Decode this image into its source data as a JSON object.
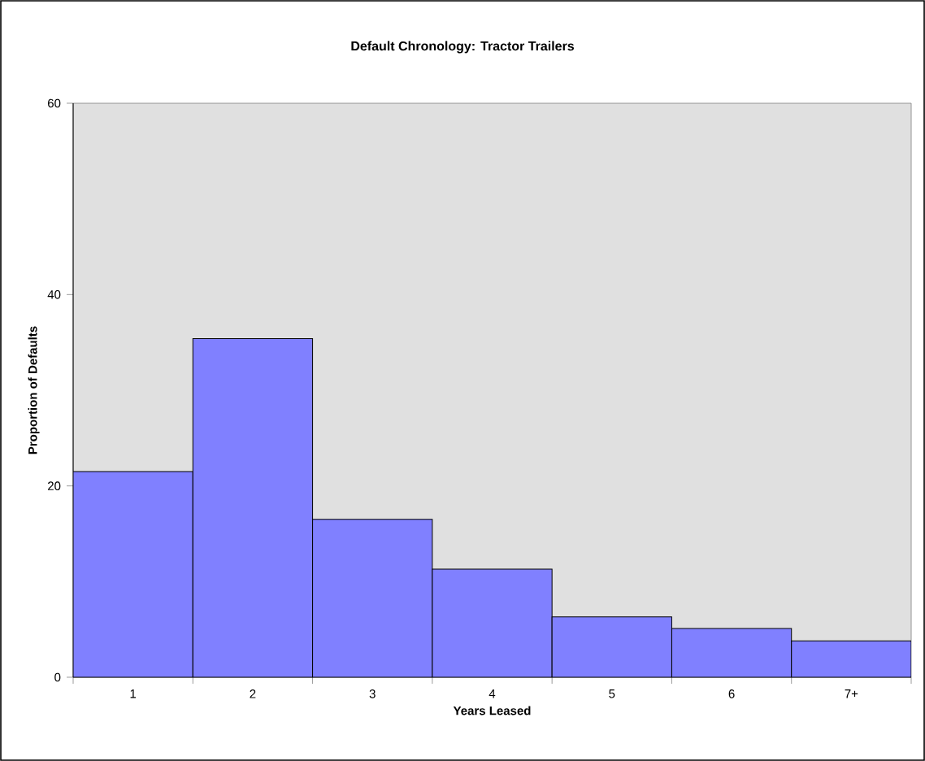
{
  "chart_data": {
    "type": "bar",
    "title": "Default Chronology:  Tractor Trailers",
    "xlabel": "Years Leased",
    "ylabel": "Proportion of Defaults",
    "categories": [
      "1",
      "2",
      "3",
      "4",
      "5",
      "6",
      "7+"
    ],
    "values": [
      21.5,
      35.4,
      16.5,
      11.3,
      6.3,
      5.1,
      3.8
    ],
    "color": "#8080ff",
    "ylim": [
      0,
      60
    ],
    "yticks": [
      0,
      20,
      40,
      60
    ],
    "grid": false
  }
}
